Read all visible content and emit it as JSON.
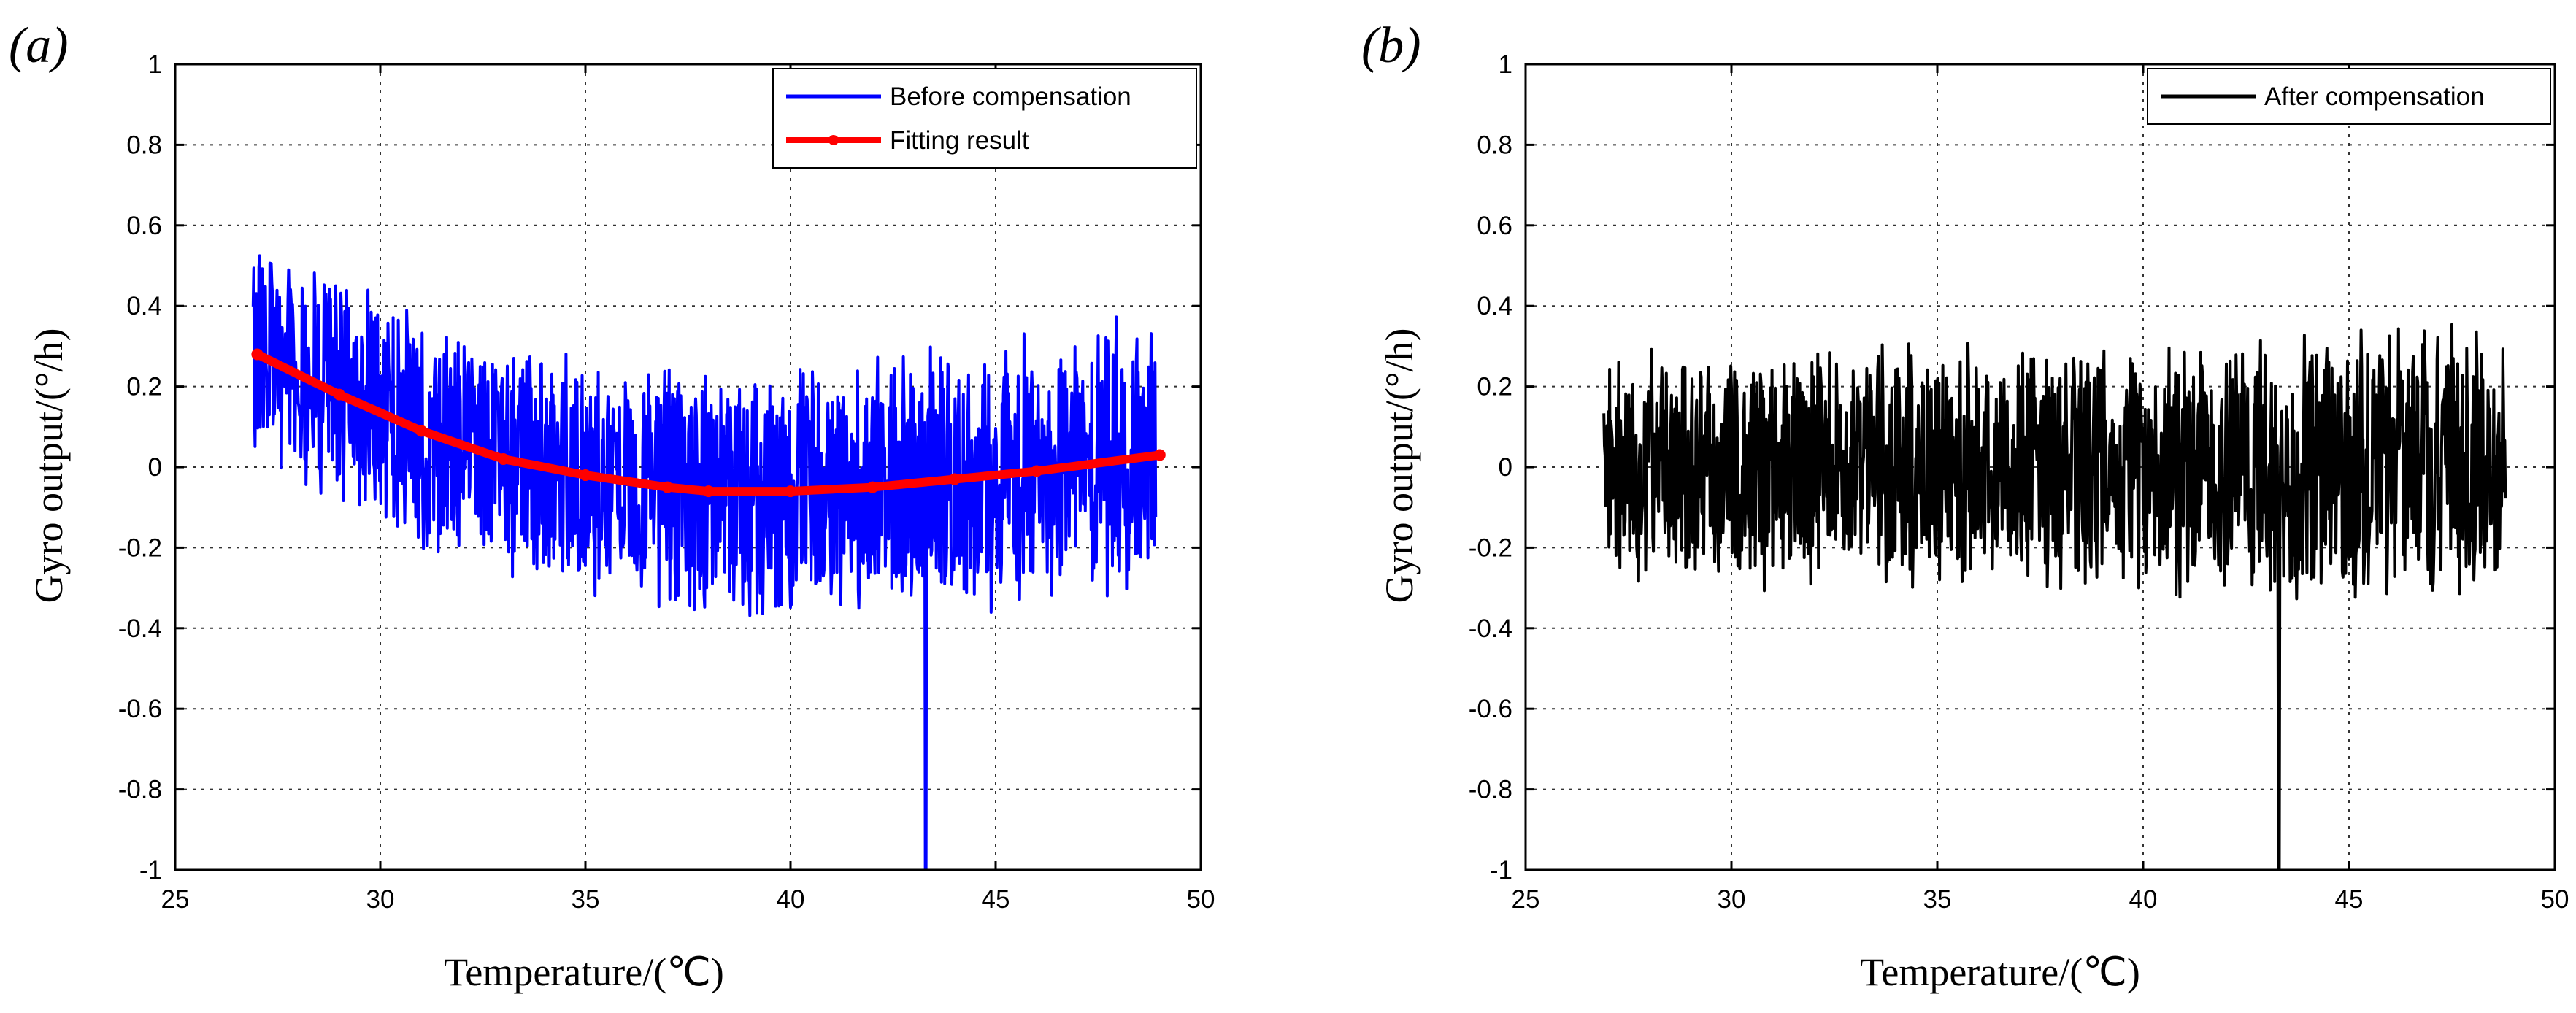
{
  "chart_data": [
    {
      "type": "line",
      "panel_label": "(a)",
      "xlabel": "Temperature/(℃)",
      "ylabel": "Gyro output/(°/h)",
      "xlim": [
        25,
        50
      ],
      "ylim": [
        -1,
        1
      ],
      "xticks": [
        "25",
        "30",
        "35",
        "40",
        "45",
        "50"
      ],
      "yticks": [
        "-1",
        "-0.8",
        "-0.6",
        "-0.4",
        "-0.2",
        "0",
        "0.2",
        "0.4",
        "0.6",
        "0.8",
        "1"
      ],
      "grid": true,
      "legend_position": "top-right",
      "series": [
        {
          "name": "Before compensation",
          "color": "#0000ff",
          "style": "noisy line",
          "x_range": [
            26.9,
            48.9
          ],
          "trend": "quadratic fit plus noise",
          "noise_amplitude": 0.3,
          "spike": {
            "x": 43.3,
            "y": -1
          }
        },
        {
          "name": "Fitting result",
          "color": "#ff0000",
          "style": "thick line with dot markers",
          "x": [
            27,
            29,
            31,
            33,
            35,
            37,
            38,
            40,
            42,
            44,
            46,
            49
          ],
          "y": [
            0.28,
            0.18,
            0.09,
            0.02,
            -0.02,
            -0.05,
            -0.06,
            -0.06,
            -0.05,
            -0.03,
            -0.01,
            0.03
          ]
        }
      ]
    },
    {
      "type": "line",
      "panel_label": "(b)",
      "xlabel": "Temperature/(℃)",
      "ylabel": "Gyro output/(°/h)",
      "xlim": [
        25,
        50
      ],
      "ylim": [
        -1,
        1
      ],
      "xticks": [
        "25",
        "30",
        "35",
        "40",
        "45",
        "50"
      ],
      "yticks": [
        "-1",
        "-0.8",
        "-0.6",
        "-0.4",
        "-0.2",
        "0",
        "0.2",
        "0.4",
        "0.6",
        "0.8",
        "1"
      ],
      "grid": true,
      "legend_position": "top-right",
      "series": [
        {
          "name": "After compensation",
          "color": "#000000",
          "style": "noisy line",
          "x_range": [
            26.9,
            48.8
          ],
          "trend": "flat around zero plus noise",
          "noise_amplitude": 0.3,
          "spike": {
            "x": 43.3,
            "y": -1
          }
        }
      ]
    }
  ]
}
